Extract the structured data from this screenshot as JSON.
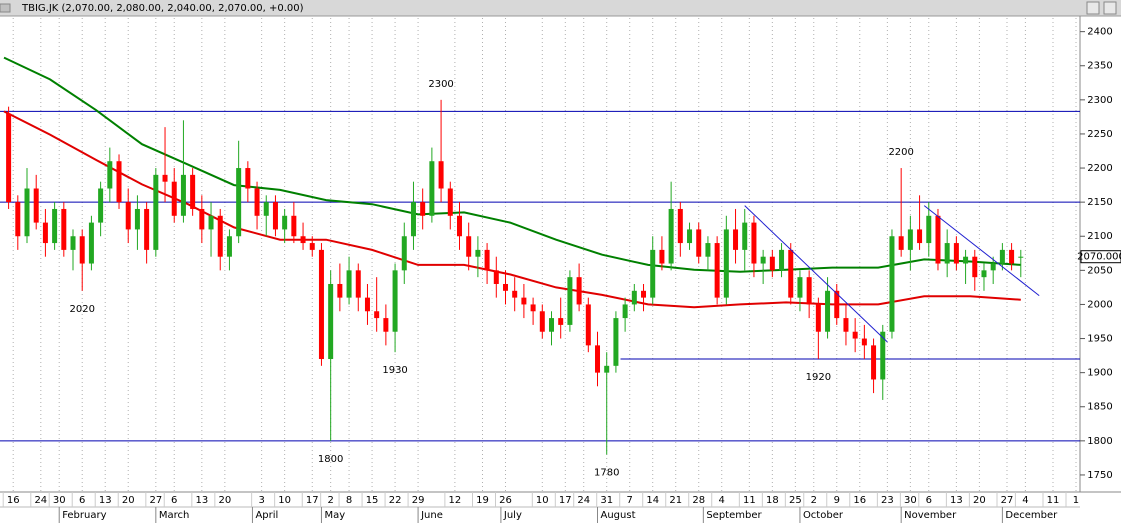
{
  "chart_data": {
    "type": "candlestick",
    "title": "TBIG.JK (2,070.00, 2,080.00, 2,040.00, 2,070.00, +0.00)",
    "x": [
      1,
      3,
      5,
      7,
      9,
      11,
      13,
      15,
      17,
      19,
      21,
      23,
      25,
      27,
      29,
      31,
      33,
      35,
      37,
      39,
      41,
      43,
      45,
      47,
      49,
      51,
      53,
      55,
      57,
      59,
      61,
      63,
      65,
      67,
      69,
      71,
      73,
      75,
      77,
      79,
      81,
      83,
      85,
      87,
      89,
      91,
      93,
      95,
      97,
      99,
      101,
      103,
      105,
      107,
      109,
      111,
      113,
      115,
      117,
      119,
      121,
      123,
      125,
      127,
      129,
      131,
      133,
      135,
      137,
      139,
      141,
      143,
      145,
      147,
      149,
      151,
      153,
      155,
      157,
      159,
      161,
      163,
      165,
      167,
      169,
      171,
      173,
      175,
      177,
      179,
      181,
      183,
      185,
      187,
      189,
      191,
      193,
      195,
      197,
      199,
      201,
      203,
      205,
      207,
      209,
      211,
      213,
      215,
      217,
      219,
      221
    ],
    "open": [
      2280,
      2150,
      2100,
      2170,
      2120,
      2090,
      2140,
      2080,
      2100,
      2060,
      2120,
      2170,
      2210,
      2150,
      2110,
      2140,
      2080,
      2190,
      2180,
      2130,
      2190,
      2140,
      2110,
      2130,
      2070,
      2100,
      2200,
      2170,
      2130,
      2150,
      2110,
      2130,
      2100,
      2090,
      2080,
      1920,
      2030,
      2010,
      2050,
      2010,
      1990,
      1980,
      1960,
      2050,
      2100,
      2150,
      2130,
      2210,
      2170,
      2130,
      2100,
      2070,
      2080,
      2050,
      2030,
      2020,
      2010,
      2000,
      1990,
      1960,
      1980,
      1970,
      2040,
      2000,
      1940,
      1900,
      1910,
      1980,
      2000,
      2020,
      2010,
      2080,
      2060,
      2140,
      2090,
      2110,
      2070,
      2090,
      2010,
      2110,
      2080,
      2120,
      2060,
      2070,
      2050,
      2080,
      2010,
      2040,
      2000,
      1960,
      2020,
      1980,
      1960,
      1950,
      1940,
      1890,
      1960,
      2100,
      2080,
      2110,
      2090,
      2130,
      2060,
      2090,
      2060,
      2070,
      2040,
      2050,
      2060,
      2080,
      2070
    ],
    "high": [
      2290,
      2160,
      2200,
      2190,
      2140,
      2150,
      2150,
      2110,
      2110,
      2130,
      2180,
      2230,
      2220,
      2170,
      2160,
      2150,
      2200,
      2260,
      2200,
      2270,
      2200,
      2160,
      2150,
      2140,
      2110,
      2240,
      2210,
      2180,
      2160,
      2160,
      2140,
      2150,
      2120,
      2100,
      2090,
      2050,
      2060,
      2070,
      2060,
      2030,
      2040,
      2000,
      2060,
      2120,
      2180,
      2170,
      2230,
      2300,
      2180,
      2150,
      2120,
      2100,
      2090,
      2070,
      2050,
      2040,
      2030,
      2010,
      2000,
      1990,
      2010,
      2050,
      2060,
      2010,
      1960,
      1930,
      1990,
      2010,
      2030,
      2030,
      2100,
      2100,
      2180,
      2150,
      2120,
      2120,
      2100,
      2100,
      2130,
      2140,
      2140,
      2130,
      2080,
      2080,
      2090,
      2090,
      2050,
      2050,
      2010,
      2040,
      2030,
      2000,
      1980,
      1970,
      1950,
      1970,
      2110,
      2200,
      2130,
      2160,
      2150,
      2140,
      2110,
      2100,
      2080,
      2080,
      2060,
      2070,
      2090,
      2090,
      2080
    ],
    "low": [
      2140,
      2080,
      2090,
      2110,
      2070,
      2080,
      2070,
      2050,
      2020,
      2050,
      2100,
      2150,
      2140,
      2090,
      2080,
      2060,
      2070,
      2150,
      2120,
      2120,
      2130,
      2090,
      2070,
      2050,
      2050,
      2090,
      2150,
      2110,
      2100,
      2100,
      2090,
      2090,
      2080,
      2070,
      1910,
      1800,
      1990,
      2000,
      1990,
      1970,
      1960,
      1940,
      1930,
      2030,
      2080,
      2110,
      2120,
      2150,
      2110,
      2080,
      2050,
      2040,
      2030,
      2010,
      2000,
      1990,
      1980,
      1970,
      1950,
      1940,
      1950,
      1960,
      1990,
      1930,
      1880,
      1780,
      1900,
      1960,
      1990,
      1990,
      2000,
      2050,
      2050,
      2070,
      2080,
      2060,
      2050,
      2000,
      2000,
      2060,
      2050,
      2040,
      2030,
      2040,
      2040,
      2000,
      1990,
      1980,
      1920,
      1950,
      1970,
      1940,
      1930,
      1920,
      1870,
      1860,
      1950,
      2070,
      2050,
      2080,
      2070,
      2050,
      2040,
      2050,
      2030,
      2020,
      2020,
      2030,
      2050,
      2050,
      2040
    ],
    "close": [
      2150,
      2100,
      2170,
      2120,
      2090,
      2140,
      2080,
      2100,
      2060,
      2120,
      2170,
      2210,
      2150,
      2110,
      2140,
      2080,
      2190,
      2180,
      2130,
      2190,
      2140,
      2110,
      2130,
      2070,
      2100,
      2200,
      2170,
      2130,
      2150,
      2110,
      2130,
      2100,
      2090,
      2080,
      1920,
      2030,
      2010,
      2050,
      2010,
      1990,
      1980,
      1960,
      2050,
      2100,
      2150,
      2130,
      2210,
      2170,
      2130,
      2100,
      2070,
      2080,
      2050,
      2030,
      2020,
      2010,
      2000,
      1990,
      1960,
      1980,
      1970,
      2040,
      2000,
      1940,
      1900,
      1910,
      1980,
      2000,
      2020,
      2010,
      2080,
      2060,
      2140,
      2090,
      2110,
      2070,
      2090,
      2010,
      2110,
      2080,
      2120,
      2060,
      2070,
      2050,
      2080,
      2010,
      2040,
      2000,
      1960,
      2020,
      1980,
      1960,
      1950,
      1940,
      1890,
      1960,
      2100,
      2080,
      2110,
      2090,
      2130,
      2060,
      2090,
      2060,
      2070,
      2040,
      2050,
      2060,
      2080,
      2060,
      2070
    ],
    "up_color": "#22a822",
    "down_color": "#ff0000",
    "series": [
      {
        "color": "#008000",
        "x": [
          0,
          10,
          20,
          30,
          40,
          50,
          60,
          70,
          80,
          90,
          100,
          110,
          120,
          130,
          140,
          150,
          160,
          170,
          180,
          190,
          200,
          210,
          221
        ],
        "values": [
          2362,
          2330,
          2285,
          2235,
          2205,
          2175,
          2168,
          2153,
          2147,
          2132,
          2135,
          2120,
          2095,
          2073,
          2058,
          2051,
          2048,
          2051,
          2054,
          2054,
          2066,
          2063,
          2058
        ]
      },
      {
        "color": "#e00000",
        "x": [
          0,
          10,
          20,
          30,
          40,
          50,
          60,
          70,
          80,
          90,
          100,
          110,
          120,
          130,
          140,
          150,
          160,
          170,
          180,
          190,
          200,
          210,
          221
        ],
        "values": [
          2283,
          2249,
          2212,
          2176,
          2147,
          2113,
          2095,
          2095,
          2080,
          2058,
          2058,
          2044,
          2025,
          2014,
          2000,
          1996,
          2000,
          2003,
          2000,
          2000,
          2012,
          2012,
          2007
        ]
      }
    ],
    "hlines": [
      {
        "value": 2283
      },
      {
        "value": 2150
      },
      {
        "value": 1920,
        "from": 134
      },
      {
        "value": 1800
      }
    ],
    "hline_color": "#0000b0",
    "trendlines": [
      {
        "x": [
          161,
          192
        ],
        "values": [
          2145,
          1945
        ]
      },
      {
        "x": [
          200,
          225
        ],
        "values": [
          2145,
          2013
        ]
      }
    ],
    "trendline_color": "#2020d0",
    "annotations": [
      {
        "value": 2020,
        "x": 17,
        "place": "below"
      },
      {
        "value": 1800,
        "x": 71,
        "place": "below"
      },
      {
        "value": 1930,
        "x": 85,
        "place": "below"
      },
      {
        "value": 2300,
        "x": 95,
        "place": "above"
      },
      {
        "value": 1780,
        "x": 131,
        "place": "below"
      },
      {
        "value": 1920,
        "x": 177,
        "place": "below"
      },
      {
        "value": 2200,
        "x": 195,
        "place": "above"
      }
    ],
    "last_price": {
      "value": 2070,
      "label": "2070.000"
    },
    "xlim": [
      0,
      234
    ],
    "ylim": [
      1725,
      2420
    ],
    "yticks": [
      1750,
      1800,
      1850,
      1900,
      1950,
      2000,
      2050,
      2100,
      2150,
      2200,
      2250,
      2300,
      2350,
      2400
    ],
    "xticks": [
      {
        "value": 2,
        "label": "16"
      },
      {
        "value": 8,
        "label": "24"
      },
      {
        "value": 12,
        "label": "30"
      },
      {
        "value": 17,
        "label": "6"
      },
      {
        "value": 22,
        "label": "13"
      },
      {
        "value": 27,
        "label": "20"
      },
      {
        "value": 33,
        "label": "27"
      },
      {
        "value": 37,
        "label": "6"
      },
      {
        "value": 43,
        "label": "13"
      },
      {
        "value": 48,
        "label": "20"
      },
      {
        "value": 56,
        "label": "3"
      },
      {
        "value": 61,
        "label": "10"
      },
      {
        "value": 67,
        "label": "17"
      },
      {
        "value": 71,
        "label": "2"
      },
      {
        "value": 75,
        "label": "8"
      },
      {
        "value": 80,
        "label": "15"
      },
      {
        "value": 85,
        "label": "22"
      },
      {
        "value": 90,
        "label": "29"
      },
      {
        "value": 98,
        "label": "12"
      },
      {
        "value": 104,
        "label": "19"
      },
      {
        "value": 109,
        "label": "26"
      },
      {
        "value": 117,
        "label": "10"
      },
      {
        "value": 122,
        "label": "17"
      },
      {
        "value": 126,
        "label": "24"
      },
      {
        "value": 131,
        "label": "31"
      },
      {
        "value": 136,
        "label": "7"
      },
      {
        "value": 141,
        "label": "14"
      },
      {
        "value": 146,
        "label": "21"
      },
      {
        "value": 151,
        "label": "28"
      },
      {
        "value": 156,
        "label": "4"
      },
      {
        "value": 162,
        "label": "11"
      },
      {
        "value": 167,
        "label": "18"
      },
      {
        "value": 172,
        "label": "25"
      },
      {
        "value": 176,
        "label": "2"
      },
      {
        "value": 181,
        "label": "9"
      },
      {
        "value": 186,
        "label": "16"
      },
      {
        "value": 192,
        "label": "23"
      },
      {
        "value": 197,
        "label": "30"
      },
      {
        "value": 201,
        "label": "6"
      },
      {
        "value": 207,
        "label": "13"
      },
      {
        "value": 212,
        "label": "20"
      },
      {
        "value": 218,
        "label": "27"
      },
      {
        "value": 222,
        "label": "4"
      },
      {
        "value": 228,
        "label": "11"
      },
      {
        "value": 233,
        "label": "1"
      }
    ],
    "month_ticks": [
      {
        "value": 12,
        "label": "February"
      },
      {
        "value": 33,
        "label": "March"
      },
      {
        "value": 54,
        "label": "April"
      },
      {
        "value": 69,
        "label": "May"
      },
      {
        "value": 90,
        "label": "June"
      },
      {
        "value": 108,
        "label": "July"
      },
      {
        "value": 129,
        "label": "August"
      },
      {
        "value": 152,
        "label": "September"
      },
      {
        "value": 173,
        "label": "October"
      },
      {
        "value": 195,
        "label": "November"
      },
      {
        "value": 217,
        "label": "December"
      }
    ],
    "grid": true
  }
}
